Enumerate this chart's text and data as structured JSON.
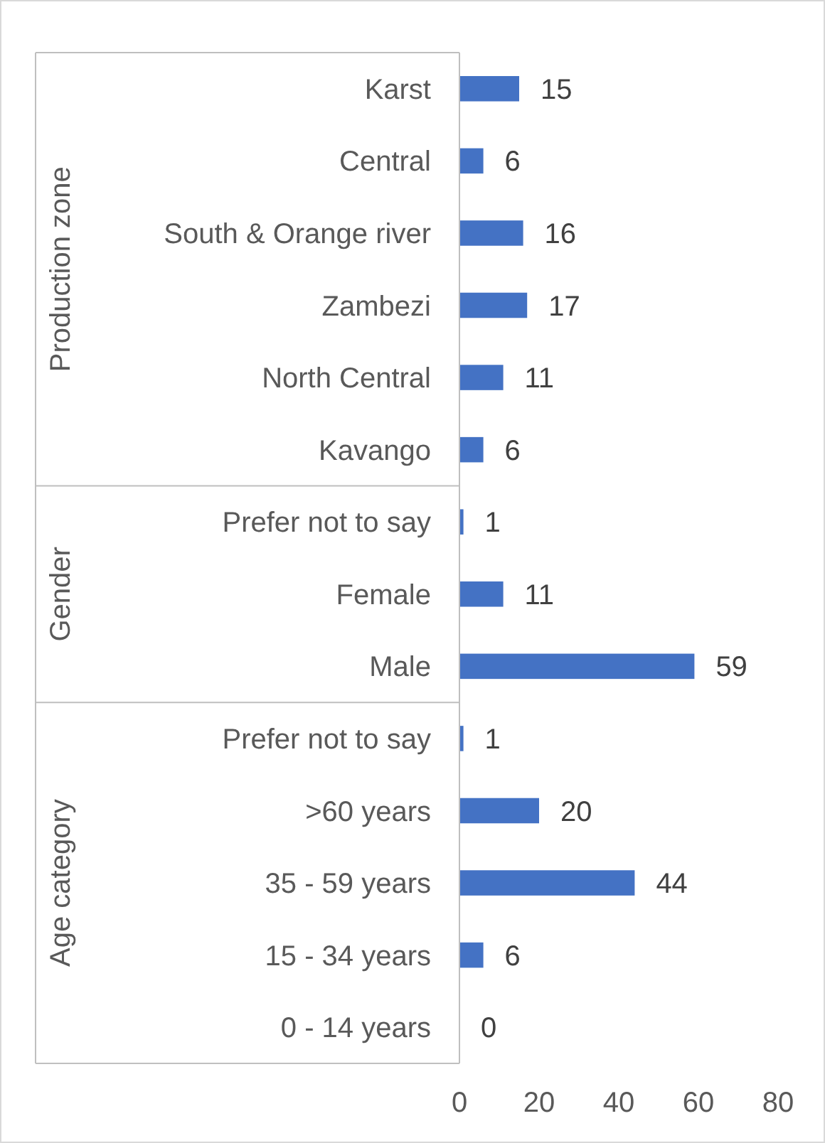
{
  "chart_data": {
    "type": "bar",
    "orientation": "horizontal",
    "categories": [
      "Karst",
      "Central",
      "South & Orange river",
      "Zambezi",
      "North Central",
      "Kavango",
      "Prefer not to say",
      "Female",
      "Male",
      "Prefer not to say",
      ">60 years",
      "35 - 59 years",
      "15 - 34 years",
      "0 - 14 years"
    ],
    "values": [
      15,
      6,
      16,
      17,
      11,
      6,
      1,
      11,
      59,
      1,
      20,
      44,
      6,
      0
    ],
    "color": "#4472c4",
    "data_labels": true,
    "xlim": [
      0,
      80
    ],
    "xticks": [
      0,
      20,
      40,
      60,
      80
    ],
    "grid": false,
    "annotations": [
      "Production zone",
      "Gender",
      "Age category"
    ]
  }
}
